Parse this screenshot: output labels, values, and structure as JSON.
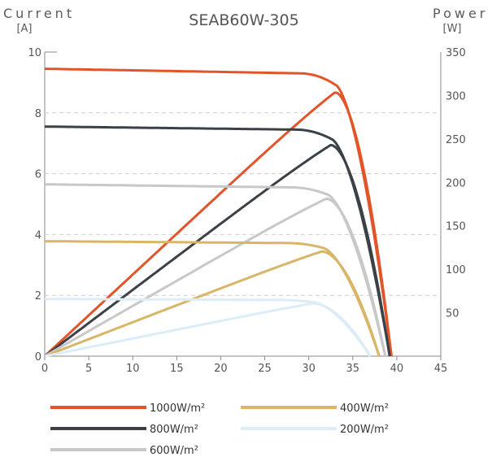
{
  "chart_data": {
    "type": "line",
    "title": "SEAB60W-305",
    "y_left_label": "Current",
    "y_left_unit": "[A]",
    "y_right_label": "Power",
    "y_right_unit": "[W]",
    "xlim": [
      0,
      45
    ],
    "x_ticks": [
      0,
      5,
      10,
      15,
      20,
      25,
      30,
      35,
      40,
      45
    ],
    "ylim_current": [
      0,
      10
    ],
    "y_left_ticks": [
      0,
      2,
      4,
      6,
      8,
      10
    ],
    "ylim_power": [
      0,
      350
    ],
    "y_right_ticks": [
      50,
      100,
      150,
      200,
      250,
      300,
      350
    ],
    "grid": "dashed horizontal at current 2, 4, 6, 8",
    "legend_position": "bottom",
    "series": [
      {
        "name": "1000W/m²",
        "color": "#e2552a",
        "isc": 9.45,
        "imp": 9.3,
        "vmp": 33.0,
        "voc": 39.4,
        "pmax": 310
      },
      {
        "name": "800W/m²",
        "color": "#3b4147",
        "isc": 7.55,
        "imp": 7.45,
        "vmp": 32.5,
        "voc": 39.2,
        "pmax": 248
      },
      {
        "name": "600W/m²",
        "color": "#c8c8c8",
        "isc": 5.65,
        "imp": 5.55,
        "vmp": 32.0,
        "voc": 38.7,
        "pmax": 185
      },
      {
        "name": "400W/m²",
        "color": "#d9b567",
        "isc": 3.78,
        "imp": 3.72,
        "vmp": 31.5,
        "voc": 38.0,
        "pmax": 123
      },
      {
        "name": "200W/m²",
        "color": "#dcedf7",
        "isc": 1.88,
        "imp": 1.85,
        "vmp": 30.5,
        "voc": 37.0,
        "pmax": 62
      }
    ]
  }
}
